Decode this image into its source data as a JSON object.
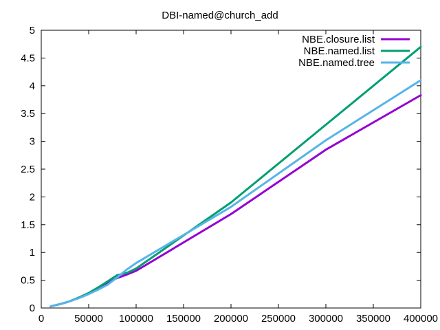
{
  "chart_data": {
    "type": "line",
    "title": "DBI-named@church_add",
    "xlabel": "",
    "ylabel": "",
    "xlim": [
      0,
      400000
    ],
    "ylim": [
      0,
      5
    ],
    "x_ticks": [
      0,
      50000,
      100000,
      150000,
      200000,
      250000,
      300000,
      350000,
      400000
    ],
    "x_tick_labels": [
      "0",
      "50000",
      "100000",
      "150000",
      "200000",
      "250000",
      "300000",
      "350000",
      "400000"
    ],
    "y_ticks": [
      0,
      0.5,
      1,
      1.5,
      2,
      2.5,
      3,
      3.5,
      4,
      4.5,
      5
    ],
    "y_tick_labels": [
      "0",
      "0.5",
      "1",
      "1.5",
      "2",
      "2.5",
      "3",
      "3.5",
      "4",
      "4.5",
      "5"
    ],
    "grid": false,
    "legend_position": "top-right",
    "series": [
      {
        "name": "NBE.closure.list",
        "color": "#9400d3",
        "x": [
          10000,
          20000,
          30000,
          40000,
          50000,
          60000,
          70000,
          80000,
          90000,
          100000,
          200000,
          300000,
          400000
        ],
        "y": [
          0.03,
          0.07,
          0.12,
          0.19,
          0.26,
          0.35,
          0.46,
          0.54,
          0.6,
          0.67,
          1.69,
          2.85,
          3.83
        ]
      },
      {
        "name": "NBE.named.list",
        "color": "#009e73",
        "x": [
          10000,
          20000,
          30000,
          40000,
          50000,
          60000,
          70000,
          80000,
          90000,
          100000,
          200000,
          300000,
          400000
        ],
        "y": [
          0.03,
          0.07,
          0.12,
          0.19,
          0.27,
          0.37,
          0.48,
          0.59,
          0.63,
          0.71,
          1.9,
          3.3,
          4.7
        ]
      },
      {
        "name": "NBE.named.tree",
        "color": "#56b4e9",
        "x": [
          10000,
          20000,
          30000,
          40000,
          50000,
          60000,
          70000,
          80000,
          90000,
          100000,
          200000,
          300000,
          400000
        ],
        "y": [
          0.03,
          0.07,
          0.12,
          0.18,
          0.25,
          0.33,
          0.42,
          0.55,
          0.69,
          0.81,
          1.82,
          3.02,
          4.1
        ]
      }
    ]
  }
}
